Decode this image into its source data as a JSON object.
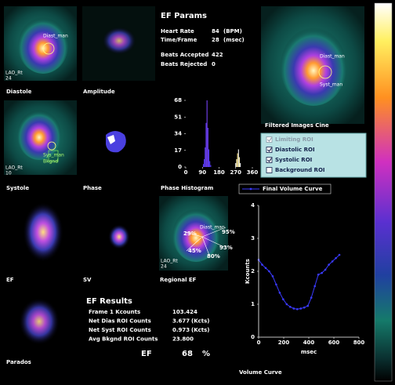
{
  "panels": [
    {
      "label": "Diastole",
      "overlays": [
        "Diast_man",
        "LAO_Rt",
        "24"
      ]
    },
    {
      "label": "Amplitude",
      "overlays": []
    },
    {
      "label": "Systole",
      "overlays": [
        "Sys_man",
        "Bkgnd",
        "LAO_Rt",
        "10"
      ]
    },
    {
      "label": "Phase",
      "overlays": []
    },
    {
      "label": "EF",
      "overlays": []
    },
    {
      "label": "SV",
      "overlays": []
    },
    {
      "label": "Regional EF",
      "overlays": [
        "Diast_man",
        "LAO_Rt",
        "24",
        "29%",
        "95%",
        "93%",
        "45%",
        "80%"
      ]
    },
    {
      "label": "Parados",
      "overlays": []
    }
  ],
  "cine_image": {
    "overlays": [
      "Diast_man",
      "Syst_man"
    ]
  },
  "ef_params": {
    "title": "EF Params",
    "rows": [
      [
        "Heart Rate",
        "84",
        "(BPM)"
      ],
      [
        "Time/Frame",
        "28",
        "(msec)"
      ],
      [
        "Beats Accepted",
        "422"
      ],
      [
        "Beats Rejected",
        "0"
      ]
    ]
  },
  "cine": {
    "title": "Filtered Images Cine",
    "options": [
      {
        "label": "Limiting ROI",
        "checked": true,
        "enabled": false
      },
      {
        "label": "Diastolic ROI",
        "checked": true,
        "enabled": true
      },
      {
        "label": "Systolic ROI",
        "checked": true,
        "enabled": true
      },
      {
        "label": "Background ROI",
        "checked": false,
        "enabled": true
      }
    ]
  },
  "ef_results": {
    "title": "EF Results",
    "rows": [
      [
        "Frame 1 Kcounts",
        "103.424"
      ],
      [
        "Net Dias ROI Counts",
        "3.677",
        "(Kcts)"
      ],
      [
        "Net Syst ROI Counts",
        "0.973",
        "(Kcts)"
      ],
      [
        "Avg Bkgnd ROI Counts",
        "23.800"
      ]
    ],
    "ef": [
      "EF",
      "68",
      "%"
    ]
  },
  "chart_data": [
    {
      "type": "bar",
      "title": "Phase Histogram",
      "x": [
        95,
        100,
        105,
        110,
        115,
        120,
        125,
        130,
        135,
        270,
        275,
        280,
        285,
        290,
        295
      ],
      "values": [
        3,
        8,
        20,
        45,
        68,
        40,
        18,
        6,
        2,
        4,
        8,
        14,
        18,
        10,
        4
      ],
      "colors": [
        "#5a3cff",
        "#5a3cff",
        "#6a40ff",
        "#6a40ff",
        "#7a44ff",
        "#6a40ff",
        "#5a3cff",
        "#5a3cff",
        "#5a3cff",
        "#ffffff",
        "#fff6c0",
        "#ffe680",
        "#ffffff",
        "#fff0a0",
        "#ffffff"
      ],
      "xlim": [
        0,
        360
      ],
      "xticks": [
        0,
        90,
        180,
        270,
        360
      ],
      "ylim": [
        0,
        68
      ],
      "yticks": [
        0,
        17,
        34,
        51,
        68
      ]
    },
    {
      "type": "line",
      "title": "Volume Curve",
      "xlabel": "msec",
      "ylabel": "Kcounts",
      "x": [
        0,
        28,
        56,
        84,
        112,
        140,
        168,
        196,
        224,
        252,
        280,
        308,
        336,
        364,
        392,
        420,
        448,
        476,
        504,
        532,
        560,
        588,
        616,
        644
      ],
      "series": [
        {
          "name": "Final Volume Curve",
          "color": "#3a3aff",
          "values": [
            2.35,
            2.2,
            2.1,
            2.0,
            1.85,
            1.6,
            1.35,
            1.15,
            1.0,
            0.92,
            0.87,
            0.85,
            0.87,
            0.9,
            0.95,
            1.2,
            1.55,
            1.9,
            1.95,
            2.05,
            2.2,
            2.3,
            2.4,
            2.5
          ]
        }
      ],
      "xlim": [
        0,
        800
      ],
      "xticks": [
        0,
        200,
        400,
        600,
        800
      ],
      "ylim": [
        0,
        4
      ],
      "yticks": [
        0,
        1,
        2,
        3,
        4
      ]
    }
  ]
}
